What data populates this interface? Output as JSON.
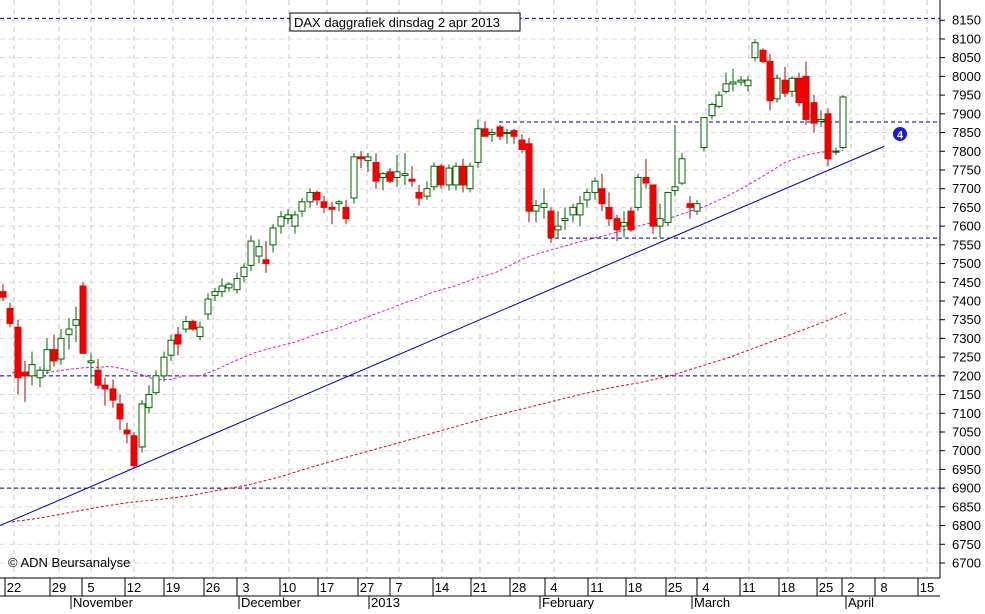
{
  "chart_data": {
    "type": "candlestick",
    "title": "DAX daggrafiek dinsdag 2 apr 2013",
    "copyright": "© ADN Beursanalyse",
    "ylim": [
      6680,
      8180
    ],
    "y_ticks": [
      6700,
      6750,
      6800,
      6850,
      6900,
      6950,
      7000,
      7050,
      7100,
      7150,
      7200,
      7250,
      7300,
      7350,
      7400,
      7450,
      7500,
      7550,
      7600,
      7650,
      7700,
      7750,
      7800,
      7850,
      7900,
      7950,
      8000,
      8050,
      8100,
      8150
    ],
    "x_tick_labels": [
      "22",
      "29",
      "5",
      "12",
      "19",
      "26",
      "3",
      "10",
      "17",
      "27",
      "7",
      "14",
      "21",
      "28",
      "4",
      "11",
      "18",
      "25",
      "4",
      "11",
      "18",
      "25",
      "2",
      "8",
      "15"
    ],
    "month_labels": [
      "November",
      "December",
      "2013",
      "February",
      "March",
      "April"
    ],
    "grid": true,
    "series": [
      {
        "values": [
          [
            7425,
            7445,
            7400,
            7410
          ],
          [
            7380,
            7395,
            7330,
            7340
          ],
          [
            7330,
            7350,
            7150,
            7195
          ],
          [
            7210,
            7240,
            7130,
            7200
          ],
          [
            7200,
            7265,
            7175,
            7230
          ],
          [
            7195,
            7225,
            7170,
            7215
          ],
          [
            7215,
            7300,
            7205,
            7270
          ],
          [
            7270,
            7310,
            7225,
            7240
          ],
          [
            7245,
            7325,
            7230,
            7300
          ],
          [
            7310,
            7355,
            7270,
            7325
          ],
          [
            7335,
            7385,
            7290,
            7350
          ],
          [
            7440,
            7450,
            7320,
            7260
          ],
          [
            7235,
            7260,
            7180,
            7240
          ],
          [
            7215,
            7245,
            7165,
            7175
          ],
          [
            7175,
            7195,
            7120,
            7165
          ],
          [
            7165,
            7190,
            7115,
            7135
          ],
          [
            7125,
            7150,
            7055,
            7085
          ],
          [
            7055,
            7075,
            7020,
            7045
          ],
          [
            7040,
            7050,
            6955,
            6960
          ],
          [
            7010,
            7135,
            6995,
            7125
          ],
          [
            7115,
            7175,
            7100,
            7150
          ],
          [
            7155,
            7215,
            7150,
            7200
          ],
          [
            7200,
            7265,
            7185,
            7250
          ],
          [
            7255,
            7310,
            7240,
            7295
          ],
          [
            7310,
            7330,
            7255,
            7285
          ],
          [
            7325,
            7360,
            7315,
            7345
          ],
          [
            7345,
            7350,
            7320,
            7325
          ],
          [
            7305,
            7345,
            7295,
            7330
          ],
          [
            7365,
            7420,
            7350,
            7405
          ],
          [
            7415,
            7435,
            7400,
            7425
          ],
          [
            7425,
            7460,
            7410,
            7440
          ],
          [
            7435,
            7450,
            7425,
            7445
          ],
          [
            7430,
            7475,
            7420,
            7460
          ],
          [
            7465,
            7500,
            7450,
            7490
          ],
          [
            7495,
            7575,
            7480,
            7560
          ],
          [
            7520,
            7565,
            7500,
            7545
          ],
          [
            7510,
            7560,
            7475,
            7500
          ],
          [
            7550,
            7605,
            7530,
            7595
          ],
          [
            7600,
            7640,
            7580,
            7625
          ],
          [
            7620,
            7645,
            7605,
            7630
          ],
          [
            7600,
            7640,
            7580,
            7630
          ],
          [
            7640,
            7675,
            7625,
            7665
          ],
          [
            7665,
            7700,
            7650,
            7690
          ],
          [
            7690,
            7695,
            7655,
            7670
          ],
          [
            7665,
            7680,
            7635,
            7650
          ],
          [
            7650,
            7665,
            7605,
            7645
          ],
          [
            7660,
            7670,
            7640,
            7665
          ],
          [
            7650,
            7670,
            7605,
            7620
          ],
          [
            7675,
            7795,
            7660,
            7785
          ],
          [
            7785,
            7800,
            7755,
            7780
          ],
          [
            7775,
            7795,
            7745,
            7785
          ],
          [
            7770,
            7795,
            7700,
            7720
          ],
          [
            7730,
            7745,
            7695,
            7740
          ],
          [
            7745,
            7755,
            7715,
            7720
          ],
          [
            7730,
            7790,
            7705,
            7745
          ],
          [
            7735,
            7795,
            7710,
            7740
          ],
          [
            7725,
            7760,
            7705,
            7720
          ],
          [
            7690,
            7710,
            7655,
            7675
          ],
          [
            7680,
            7720,
            7670,
            7700
          ],
          [
            7705,
            7770,
            7695,
            7760
          ],
          [
            7760,
            7765,
            7700,
            7710
          ],
          [
            7710,
            7765,
            7695,
            7755
          ],
          [
            7710,
            7770,
            7695,
            7760
          ],
          [
            7760,
            7780,
            7690,
            7710
          ],
          [
            7700,
            7770,
            7690,
            7760
          ],
          [
            7770,
            7885,
            7755,
            7860
          ],
          [
            7860,
            7880,
            7845,
            7840
          ],
          [
            7845,
            7860,
            7825,
            7850
          ],
          [
            7865,
            7870,
            7830,
            7840
          ],
          [
            7850,
            7860,
            7820,
            7850
          ],
          [
            7855,
            7860,
            7820,
            7840
          ],
          [
            7830,
            7845,
            7795,
            7805
          ],
          [
            7820,
            7835,
            7610,
            7640
          ],
          [
            7640,
            7670,
            7610,
            7655
          ],
          [
            7650,
            7700,
            7620,
            7660
          ],
          [
            7640,
            7650,
            7555,
            7570
          ],
          [
            7590,
            7640,
            7570,
            7600
          ],
          [
            7615,
            7650,
            7590,
            7620
          ],
          [
            7630,
            7660,
            7610,
            7650
          ],
          [
            7630,
            7680,
            7600,
            7660
          ],
          [
            7670,
            7700,
            7650,
            7690
          ],
          [
            7690,
            7730,
            7670,
            7720
          ],
          [
            7700,
            7740,
            7640,
            7660
          ],
          [
            7650,
            7690,
            7600,
            7620
          ],
          [
            7620,
            7630,
            7560,
            7590
          ],
          [
            7600,
            7640,
            7570,
            7610
          ],
          [
            7640,
            7650,
            7585,
            7590
          ],
          [
            7650,
            7740,
            7640,
            7730
          ],
          [
            7730,
            7780,
            7700,
            7715
          ],
          [
            7710,
            7710,
            7580,
            7600
          ],
          [
            7600,
            7660,
            7570,
            7620
          ],
          [
            7610,
            7690,
            7600,
            7690
          ],
          [
            7695,
            7870,
            7680,
            7705
          ],
          [
            7715,
            7795,
            7710,
            7780
          ],
          [
            7660,
            7680,
            7620,
            7650
          ],
          [
            7640,
            7670,
            7630,
            7660
          ],
          [
            7810,
            7890,
            7800,
            7890
          ],
          [
            7895,
            7930,
            7885,
            7925
          ],
          [
            7920,
            7960,
            7915,
            7950
          ],
          [
            7960,
            8010,
            7955,
            7980
          ],
          [
            7980,
            8020,
            7960,
            7985
          ],
          [
            7985,
            8000,
            7975,
            7990
          ],
          [
            7975,
            8000,
            7960,
            7990
          ],
          [
            8050,
            8100,
            8040,
            8090
          ],
          [
            8070,
            8075,
            8035,
            8040
          ],
          [
            8040,
            8060,
            7910,
            7935
          ],
          [
            7940,
            8005,
            7930,
            7995
          ],
          [
            7990,
            8025,
            7945,
            7955
          ],
          [
            7960,
            8000,
            7945,
            7995
          ],
          [
            7995,
            8010,
            7920,
            7930
          ],
          [
            8000,
            8040,
            7870,
            7885
          ],
          [
            7930,
            7950,
            7850,
            7875
          ],
          [
            7880,
            7910,
            7865,
            7885
          ],
          [
            7900,
            7915,
            7760,
            7780
          ],
          [
            7800,
            7810,
            7790,
            7800
          ],
          [
            7810,
            7950,
            7805,
            7945
          ]
        ]
      },
      {
        "name": "ma-short",
        "values": [
          [
            12,
            7210
          ],
          [
            25,
            7200
          ],
          [
            40,
            7205
          ],
          [
            55,
            7212
          ],
          [
            70,
            7218
          ],
          [
            85,
            7222
          ],
          [
            100,
            7223
          ],
          [
            110,
            7225
          ],
          [
            125,
            7218
          ],
          [
            140,
            7205
          ],
          [
            155,
            7190
          ],
          [
            170,
            7190
          ],
          [
            185,
            7200
          ],
          [
            200,
            7200
          ],
          [
            215,
            7215
          ],
          [
            235,
            7240
          ],
          [
            255,
            7262
          ],
          [
            275,
            7277
          ],
          [
            295,
            7290
          ],
          [
            315,
            7310
          ],
          [
            335,
            7325
          ],
          [
            355,
            7345
          ],
          [
            375,
            7365
          ],
          [
            395,
            7385
          ],
          [
            415,
            7405
          ],
          [
            435,
            7425
          ],
          [
            455,
            7440
          ],
          [
            475,
            7460
          ],
          [
            495,
            7475
          ],
          [
            510,
            7495
          ],
          [
            525,
            7515
          ],
          [
            545,
            7532
          ],
          [
            565,
            7547
          ],
          [
            585,
            7562
          ],
          [
            605,
            7575
          ],
          [
            625,
            7590
          ],
          [
            645,
            7605
          ],
          [
            665,
            7617
          ],
          [
            685,
            7635
          ],
          [
            705,
            7653
          ],
          [
            725,
            7677
          ],
          [
            745,
            7705
          ],
          [
            765,
            7737
          ],
          [
            785,
            7770
          ],
          [
            800,
            7785
          ],
          [
            815,
            7795
          ],
          [
            830,
            7800
          ],
          [
            843,
            7802
          ]
        ]
      },
      {
        "name": "ma-long",
        "values": [
          [
            12,
            6810
          ],
          [
            40,
            6820
          ],
          [
            70,
            6835
          ],
          [
            100,
            6850
          ],
          [
            130,
            6862
          ],
          [
            160,
            6870
          ],
          [
            190,
            6880
          ],
          [
            220,
            6895
          ],
          [
            250,
            6910
          ],
          [
            280,
            6930
          ],
          [
            310,
            6955
          ],
          [
            340,
            6978
          ],
          [
            370,
            7000
          ],
          [
            400,
            7022
          ],
          [
            430,
            7045
          ],
          [
            460,
            7068
          ],
          [
            490,
            7090
          ],
          [
            520,
            7110
          ],
          [
            550,
            7130
          ],
          [
            580,
            7150
          ],
          [
            610,
            7168
          ],
          [
            640,
            7182
          ],
          [
            670,
            7200
          ],
          [
            700,
            7225
          ],
          [
            730,
            7250
          ],
          [
            760,
            7280
          ],
          [
            790,
            7310
          ],
          [
            820,
            7340
          ],
          [
            846,
            7368
          ]
        ]
      }
    ],
    "horizontal_lines": [
      8155,
      7878,
      7568,
      7200,
      6900
    ],
    "trendline": {
      "from": [
        0,
        6800
      ],
      "to": [
        884,
        7813
      ]
    },
    "marker_label": "4"
  }
}
